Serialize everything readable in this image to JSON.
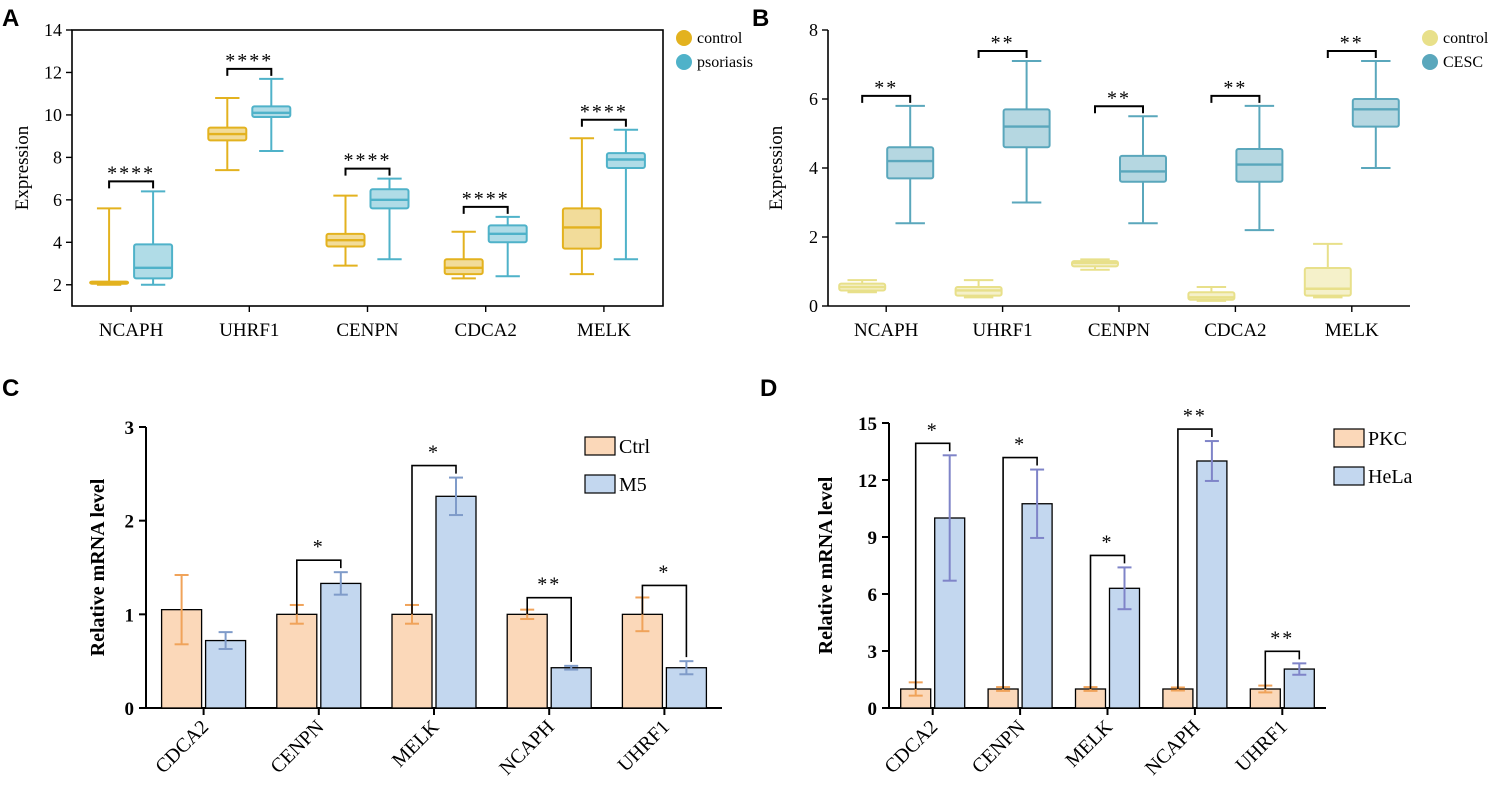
{
  "chart_data": [
    {
      "panel": "A",
      "type": "box",
      "ylabel": "Expression",
      "ylim": [
        1,
        14
      ],
      "yticks": [
        2,
        4,
        6,
        8,
        10,
        12,
        14
      ],
      "categories": [
        "NCAPH",
        "UHRF1",
        "CENPN",
        "CDCA2",
        "MELK"
      ],
      "series": [
        {
          "name": "control",
          "color": "#e3b21f",
          "boxes": [
            {
              "min": 2.0,
              "q1": 2.05,
              "median": 2.1,
              "q3": 2.15,
              "max": 5.6
            },
            {
              "min": 7.4,
              "q1": 8.8,
              "median": 9.1,
              "q3": 9.4,
              "max": 10.8
            },
            {
              "min": 2.9,
              "q1": 3.8,
              "median": 4.1,
              "q3": 4.4,
              "max": 6.2
            },
            {
              "min": 2.3,
              "q1": 2.5,
              "median": 2.8,
              "q3": 3.2,
              "max": 4.5
            },
            {
              "min": 2.5,
              "q1": 3.7,
              "median": 4.7,
              "q3": 5.6,
              "max": 8.9
            }
          ]
        },
        {
          "name": "psoriasis",
          "color": "#4fb2c9",
          "boxes": [
            {
              "min": 2.0,
              "q1": 2.3,
              "median": 2.8,
              "q3": 3.9,
              "max": 6.4
            },
            {
              "min": 8.3,
              "q1": 9.9,
              "median": 10.1,
              "q3": 10.4,
              "max": 11.7
            },
            {
              "min": 3.2,
              "q1": 5.6,
              "median": 6.0,
              "q3": 6.5,
              "max": 7.0
            },
            {
              "min": 2.4,
              "q1": 4.0,
              "median": 4.4,
              "q3": 4.8,
              "max": 5.2
            },
            {
              "min": 3.2,
              "q1": 7.5,
              "median": 7.9,
              "q3": 8.2,
              "max": 9.3
            }
          ]
        }
      ],
      "significance": [
        "****",
        "****",
        "****",
        "****",
        "****"
      ],
      "legend": [
        "control",
        "psoriasis"
      ]
    },
    {
      "panel": "B",
      "type": "box",
      "ylabel": "Expression",
      "ylim": [
        0,
        8
      ],
      "yticks": [
        0,
        2,
        4,
        6,
        8
      ],
      "categories": [
        "NCAPH",
        "UHRF1",
        "CENPN",
        "CDCA2",
        "MELK"
      ],
      "series": [
        {
          "name": "control",
          "color": "#e8e08a",
          "boxes": [
            {
              "min": 0.4,
              "q1": 0.45,
              "median": 0.55,
              "q3": 0.65,
              "max": 0.75
            },
            {
              "min": 0.25,
              "q1": 0.3,
              "median": 0.45,
              "q3": 0.55,
              "max": 0.75
            },
            {
              "min": 1.05,
              "q1": 1.15,
              "median": 1.25,
              "q3": 1.3,
              "max": 1.35
            },
            {
              "min": 0.15,
              "q1": 0.18,
              "median": 0.25,
              "q3": 0.4,
              "max": 0.55
            },
            {
              "min": 0.25,
              "q1": 0.3,
              "median": 0.5,
              "q3": 1.1,
              "max": 1.8
            }
          ]
        },
        {
          "name": "CESC",
          "color": "#5aa7bc",
          "boxes": [
            {
              "min": 2.4,
              "q1": 3.7,
              "median": 4.2,
              "q3": 4.6,
              "max": 5.8
            },
            {
              "min": 3.0,
              "q1": 4.6,
              "median": 5.2,
              "q3": 5.7,
              "max": 7.1
            },
            {
              "min": 2.4,
              "q1": 3.6,
              "median": 3.9,
              "q3": 4.35,
              "max": 5.5
            },
            {
              "min": 2.2,
              "q1": 3.6,
              "median": 4.1,
              "q3": 4.55,
              "max": 5.8
            },
            {
              "min": 4.0,
              "q1": 5.2,
              "median": 5.7,
              "q3": 6.0,
              "max": 7.1
            }
          ]
        }
      ],
      "significance": [
        "**",
        "**",
        "**",
        "**",
        "**"
      ],
      "legend": [
        "control",
        "CESC"
      ]
    },
    {
      "panel": "C",
      "type": "bar",
      "ylabel": "Relative mRNA level",
      "ylim": [
        0,
        3
      ],
      "yticks": [
        0,
        1,
        2,
        3
      ],
      "categories": [
        "CDCA2",
        "CENPN",
        "MELK",
        "NCAPH",
        "UHRF1"
      ],
      "series": [
        {
          "name": "Ctrl",
          "fill": "#fbd8b9",
          "err_color": "#f0a35a",
          "values": [
            1.05,
            1.0,
            1.0,
            1.0,
            1.0
          ],
          "errors": [
            0.37,
            0.1,
            0.1,
            0.05,
            0.18
          ]
        },
        {
          "name": "M5",
          "fill": "#c3d7ef",
          "err_color": "#7f9bc9",
          "values": [
            0.72,
            1.33,
            2.26,
            0.43,
            0.43
          ],
          "errors": [
            0.09,
            0.12,
            0.2,
            0.02,
            0.07
          ]
        }
      ],
      "significance": [
        "",
        "*",
        "*",
        "**",
        "*"
      ],
      "legend": [
        "Ctrl",
        "M5"
      ]
    },
    {
      "panel": "D",
      "type": "bar",
      "ylabel": "Relative mRNA level",
      "ylim": [
        0,
        15
      ],
      "yticks": [
        0,
        3,
        6,
        9,
        12,
        15
      ],
      "categories": [
        "CDCA2",
        "CENPN",
        "MELK",
        "NCAPH",
        "UHRF1"
      ],
      "series": [
        {
          "name": "PKC",
          "fill": "#fbd8b9",
          "err_color": "#f0a35a",
          "values": [
            1.0,
            1.0,
            1.0,
            1.0,
            1.0
          ],
          "errors": [
            0.35,
            0.1,
            0.1,
            0.08,
            0.18
          ]
        },
        {
          "name": "HeLa",
          "fill": "#c3d7ef",
          "err_color": "#7f84c8",
          "values": [
            10.0,
            10.75,
            6.3,
            13.0,
            2.05
          ],
          "errors": [
            3.3,
            1.8,
            1.1,
            1.05,
            0.3
          ]
        }
      ],
      "significance": [
        "*",
        "*",
        "*",
        "**",
        "**"
      ],
      "legend": [
        "PKC",
        "HeLa"
      ]
    }
  ],
  "panel_labels": [
    "A",
    "B",
    "C",
    "D"
  ]
}
